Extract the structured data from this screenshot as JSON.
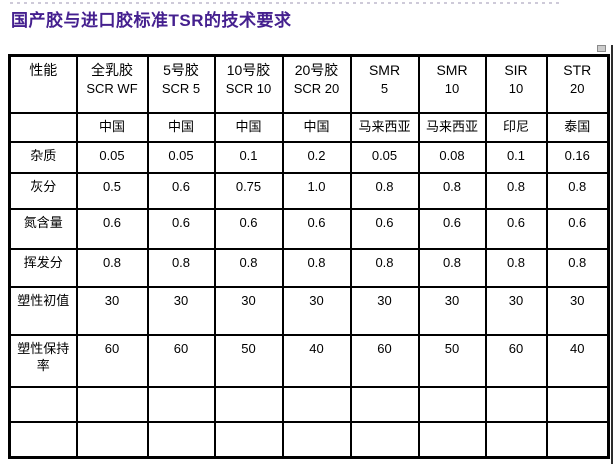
{
  "title": "国产胶与进口胶标准TSR的技术要求",
  "colors": {
    "title_text": "#45208F",
    "highlight_text": "#5B2D91",
    "grid": "#000000",
    "background": "#FFFFFF"
  },
  "table": {
    "header": [
      {
        "line1": "性能",
        "line2": ""
      },
      {
        "line1": "全乳胶",
        "line2": "SCR WF"
      },
      {
        "line1": "5号胶",
        "line2": "SCR 5"
      },
      {
        "line1": "10号胶",
        "line2": "SCR 10"
      },
      {
        "line1": "20号胶",
        "line2": "SCR 20"
      },
      {
        "line1": "SMR",
        "line2": "5"
      },
      {
        "line1": "SMR",
        "line2": "10"
      },
      {
        "line1": "SIR",
        "line2": "10"
      },
      {
        "line1": "STR",
        "line2": "20"
      }
    ],
    "countries": [
      "",
      "中国",
      "中国",
      "中国",
      "中国",
      "马来西亚",
      "马来西亚",
      "印尼",
      "泰国"
    ],
    "rows": [
      {
        "label": "杂质",
        "values": [
          "0.05",
          "0.05",
          "0.1",
          "0.2",
          "0.05",
          "0.08",
          "0.1",
          "0.16"
        ]
      },
      {
        "label": "灰分",
        "values": [
          "0.5",
          "0.6",
          "0.75",
          "1.0",
          "0.8",
          "0.8",
          "0.8",
          "0.8"
        ]
      },
      {
        "label": "氮含量",
        "values": [
          "0.6",
          "0.6",
          "0.6",
          "0.6",
          "0.6",
          "0.6",
          "0.6",
          "0.6"
        ]
      },
      {
        "label": "挥发分",
        "values": [
          "0.8",
          "0.8",
          "0.8",
          "0.8",
          "0.8",
          "0.8",
          "0.8",
          "0.8"
        ]
      },
      {
        "label": "塑性初值",
        "values": [
          "30",
          "30",
          "30",
          "30",
          "30",
          "30",
          "30",
          "30"
        ]
      },
      {
        "label": "塑性保持率",
        "values": [
          "60",
          "60",
          "50",
          "40",
          "60",
          "50",
          "60",
          "40"
        ]
      },
      {
        "label": "",
        "values": [
          "",
          "",
          "",
          "",
          "",
          "",
          "",
          ""
        ]
      },
      {
        "label": "",
        "values": [
          "",
          "",
          "",
          "",
          "",
          "",
          "",
          ""
        ]
      }
    ],
    "highlight_value_columns": [
      1,
      4
    ]
  }
}
